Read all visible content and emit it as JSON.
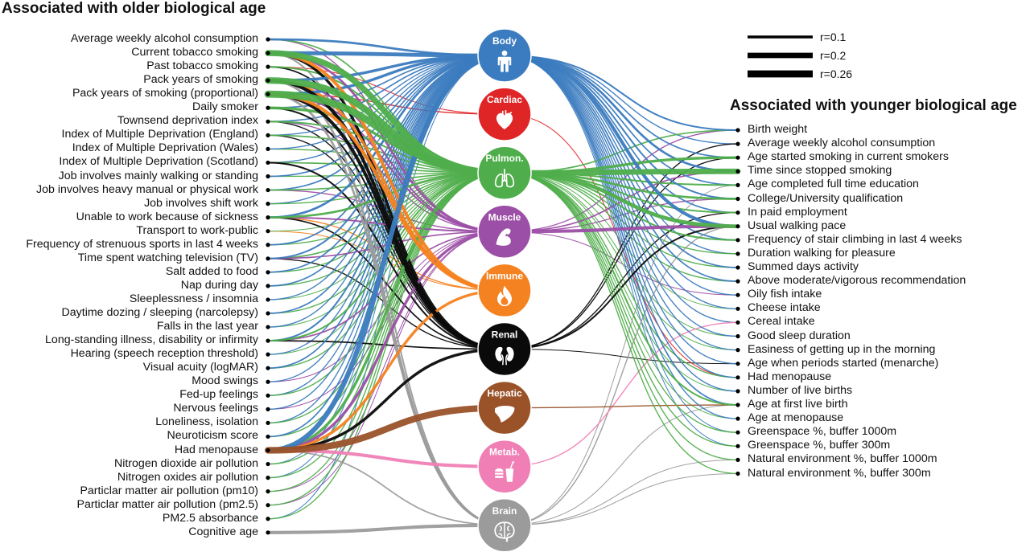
{
  "headers": {
    "older": "Associated with older biological age",
    "younger": "Associated with younger biological age"
  },
  "legend": [
    {
      "label": "r=0.1",
      "r": 0.1
    },
    {
      "label": "r=0.2",
      "r": 0.2
    },
    {
      "label": "r=0.26",
      "r": 0.26
    }
  ],
  "organs": [
    {
      "id": "body",
      "label": "Body",
      "color": "#3b7bbf",
      "icon": "body-icon"
    },
    {
      "id": "cardiac",
      "label": "Cardiac",
      "color": "#e02527",
      "icon": "heart-icon"
    },
    {
      "id": "pulmon",
      "label": "Pulmon.",
      "color": "#4fae4b",
      "icon": "lungs-icon"
    },
    {
      "id": "muscle",
      "label": "Muscle",
      "color": "#9c4fa6",
      "icon": "muscle-arm-icon"
    },
    {
      "id": "immune",
      "label": "Immune",
      "color": "#f58220",
      "icon": "flame-icon"
    },
    {
      "id": "renal",
      "label": "Renal",
      "color": "#0a0a0a",
      "icon": "kidneys-icon"
    },
    {
      "id": "hepatic",
      "label": "Hepatic",
      "color": "#9a5229",
      "icon": "liver-icon"
    },
    {
      "id": "metab",
      "label": "Metab.",
      "color": "#ef7fb5",
      "icon": "fast-food-icon"
    },
    {
      "id": "brain",
      "label": "Brain",
      "color": "#9b9b9b",
      "icon": "brain-icon"
    }
  ],
  "older_factors": [
    "Average weekly alcohol consumption",
    "Current tobacco smoking",
    "Past tobacco smoking",
    "Pack years of smoking",
    "Pack years of smoking (proportional)",
    "Daily smoker",
    "Townsend deprivation index",
    "Index of Multiple Deprivation (England)",
    "Index of Multiple Deprivation (Wales)",
    "Index of Multiple Deprivation (Scotland)",
    "Job involves mainly walking or standing",
    "Job involves heavy manual or physical work",
    "Job involves shift work",
    "Unable to work because of sickness",
    "Transport to work-public",
    "Frequency of strenuous sports in last 4 weeks",
    "Time spent watching television (TV)",
    "Salt added to food",
    "Nap during day",
    "Sleeplessness / insomnia",
    "Daytime dozing / sleeping (narcolepsy)",
    "Falls in the last year",
    "Long-standing illness, disability or infirmity",
    "Hearing (speech reception threshold)",
    "Visual acuity (logMAR)",
    "Mood swings",
    "Fed-up feelings",
    "Nervous feelings",
    "Loneliness, isolation",
    "Neuroticism score",
    "Had menopause",
    "Nitrogen dioxide air pollution",
    "Nitrogen oxides air pollution",
    "Particlar matter air pollution (pm10)",
    "Particlar matter air pollution (pm2.5)",
    "PM2.5 absorbance",
    "Cognitive age"
  ],
  "younger_factors": [
    "Birth weight",
    "Average weekly alcohol consumption",
    "Age started smoking in current smokers",
    "Time since stopped smoking",
    "Age completed full time education",
    "College/University qualification",
    "In paid employment",
    "Usual walking pace",
    "Frequency of stair climbing in last 4 weeks",
    "Duration walking for pleasure",
    "Summed days activity",
    "Above moderate/vigorous recommendation",
    "Oily fish intake",
    "Cheese intake",
    "Cereal intake",
    "Good sleep duration",
    "Easiness of getting up in the morning",
    "Age when periods started (menarche)",
    "Had menopause",
    "Number of live births",
    "Age at first live birth",
    "Age at menopause",
    "Greenspace %, buffer 1000m",
    "Greenspace %, buffer 300m",
    "Natural environment %, buffer 1000m",
    "Natural environment %, buffer 300m"
  ],
  "older_links": [
    {
      "factor": 0,
      "organ": "body",
      "r": 0.08
    },
    {
      "factor": 0,
      "organ": "pulmon",
      "r": 0.05
    },
    {
      "factor": 0,
      "organ": "muscle",
      "r": 0.04
    },
    {
      "factor": 1,
      "organ": "body",
      "r": 0.14
    },
    {
      "factor": 1,
      "organ": "pulmon",
      "r": 0.22
    },
    {
      "factor": 1,
      "organ": "immune",
      "r": 0.12
    },
    {
      "factor": 1,
      "organ": "renal",
      "r": 0.1
    },
    {
      "factor": 1,
      "organ": "muscle",
      "r": 0.08
    },
    {
      "factor": 1,
      "organ": "brain",
      "r": 0.06
    },
    {
      "factor": 2,
      "organ": "pulmon",
      "r": 0.06
    },
    {
      "factor": 2,
      "organ": "renal",
      "r": 0.05
    },
    {
      "factor": 2,
      "organ": "cardiac",
      "r": 0.03
    },
    {
      "factor": 3,
      "organ": "body",
      "r": 0.1
    },
    {
      "factor": 3,
      "organ": "pulmon",
      "r": 0.24
    },
    {
      "factor": 3,
      "organ": "renal",
      "r": 0.12
    },
    {
      "factor": 3,
      "organ": "immune",
      "r": 0.1
    },
    {
      "factor": 3,
      "organ": "brain",
      "r": 0.08
    },
    {
      "factor": 3,
      "organ": "muscle",
      "r": 0.06
    },
    {
      "factor": 4,
      "organ": "body",
      "r": 0.1
    },
    {
      "factor": 4,
      "organ": "pulmon",
      "r": 0.26
    },
    {
      "factor": 4,
      "organ": "renal",
      "r": 0.12
    },
    {
      "factor": 4,
      "organ": "immune",
      "r": 0.12
    },
    {
      "factor": 4,
      "organ": "brain",
      "r": 0.08
    },
    {
      "factor": 4,
      "organ": "muscle",
      "r": 0.06
    },
    {
      "factor": 4,
      "organ": "cardiac",
      "r": 0.04
    },
    {
      "factor": 5,
      "organ": "pulmon",
      "r": 0.1
    },
    {
      "factor": 5,
      "organ": "renal",
      "r": 0.06
    },
    {
      "factor": 5,
      "organ": "body",
      "r": 0.05
    },
    {
      "factor": 6,
      "organ": "pulmon",
      "r": 0.06
    },
    {
      "factor": 6,
      "organ": "body",
      "r": 0.05
    },
    {
      "factor": 6,
      "organ": "renal",
      "r": 0.04
    },
    {
      "factor": 6,
      "organ": "muscle",
      "r": 0.04
    },
    {
      "factor": 7,
      "organ": "pulmon",
      "r": 0.05
    },
    {
      "factor": 7,
      "organ": "body",
      "r": 0.04
    },
    {
      "factor": 7,
      "organ": "renal",
      "r": 0.04
    },
    {
      "factor": 8,
      "organ": "pulmon",
      "r": 0.04
    },
    {
      "factor": 8,
      "organ": "body",
      "r": 0.04
    },
    {
      "factor": 9,
      "organ": "pulmon",
      "r": 0.05
    },
    {
      "factor": 9,
      "organ": "renal",
      "r": 0.06
    },
    {
      "factor": 9,
      "organ": "body",
      "r": 0.04
    },
    {
      "factor": 10,
      "organ": "body",
      "r": 0.05
    },
    {
      "factor": 10,
      "organ": "pulmon",
      "r": 0.04
    },
    {
      "factor": 11,
      "organ": "body",
      "r": 0.05
    },
    {
      "factor": 11,
      "organ": "pulmon",
      "r": 0.05
    },
    {
      "factor": 11,
      "organ": "muscle",
      "r": 0.04
    },
    {
      "factor": 12,
      "organ": "body",
      "r": 0.04
    },
    {
      "factor": 12,
      "organ": "pulmon",
      "r": 0.04
    },
    {
      "factor": 13,
      "organ": "body",
      "r": 0.08
    },
    {
      "factor": 13,
      "organ": "pulmon",
      "r": 0.08
    },
    {
      "factor": 13,
      "organ": "muscle",
      "r": 0.06
    },
    {
      "factor": 13,
      "organ": "renal",
      "r": 0.05
    },
    {
      "factor": 13,
      "organ": "immune",
      "r": 0.04
    },
    {
      "factor": 14,
      "organ": "immune",
      "r": 0.03
    },
    {
      "factor": 14,
      "organ": "pulmon",
      "r": 0.03
    },
    {
      "factor": 15,
      "organ": "body",
      "r": 0.05
    },
    {
      "factor": 15,
      "organ": "pulmon",
      "r": 0.04
    },
    {
      "factor": 16,
      "organ": "body",
      "r": 0.06
    },
    {
      "factor": 16,
      "organ": "pulmon",
      "r": 0.05
    },
    {
      "factor": 16,
      "organ": "muscle",
      "r": 0.05
    },
    {
      "factor": 16,
      "organ": "renal",
      "r": 0.04
    },
    {
      "factor": 17,
      "organ": "body",
      "r": 0.05
    },
    {
      "factor": 17,
      "organ": "pulmon",
      "r": 0.04
    },
    {
      "factor": 18,
      "organ": "body",
      "r": 0.05
    },
    {
      "factor": 18,
      "organ": "pulmon",
      "r": 0.04
    },
    {
      "factor": 19,
      "organ": "body",
      "r": 0.04
    },
    {
      "factor": 19,
      "organ": "pulmon",
      "r": 0.03
    },
    {
      "factor": 20,
      "organ": "body",
      "r": 0.05
    },
    {
      "factor": 20,
      "organ": "pulmon",
      "r": 0.04
    },
    {
      "factor": 21,
      "organ": "pulmon",
      "r": 0.03
    },
    {
      "factor": 21,
      "organ": "body",
      "r": 0.04
    },
    {
      "factor": 22,
      "organ": "body",
      "r": 0.06
    },
    {
      "factor": 22,
      "organ": "pulmon",
      "r": 0.06
    },
    {
      "factor": 22,
      "organ": "muscle",
      "r": 0.05
    },
    {
      "factor": 22,
      "organ": "renal",
      "r": 0.05
    },
    {
      "factor": 23,
      "organ": "body",
      "r": 0.04
    },
    {
      "factor": 23,
      "organ": "pulmon",
      "r": 0.03
    },
    {
      "factor": 24,
      "organ": "body",
      "r": 0.05
    },
    {
      "factor": 24,
      "organ": "pulmon",
      "r": 0.04
    },
    {
      "factor": 25,
      "organ": "body",
      "r": 0.04
    },
    {
      "factor": 25,
      "organ": "muscle",
      "r": 0.03
    },
    {
      "factor": 26,
      "organ": "body",
      "r": 0.04
    },
    {
      "factor": 26,
      "organ": "pulmon",
      "r": 0.04
    },
    {
      "factor": 27,
      "organ": "body",
      "r": 0.04
    },
    {
      "factor": 27,
      "organ": "muscle",
      "r": 0.03
    },
    {
      "factor": 28,
      "organ": "body",
      "r": 0.04
    },
    {
      "factor": 28,
      "organ": "pulmon",
      "r": 0.04
    },
    {
      "factor": 29,
      "organ": "body",
      "r": 0.05
    },
    {
      "factor": 29,
      "organ": "pulmon",
      "r": 0.04
    },
    {
      "factor": 30,
      "organ": "body",
      "r": 0.18
    },
    {
      "factor": 30,
      "organ": "pulmon",
      "r": 0.1
    },
    {
      "factor": 30,
      "organ": "muscle",
      "r": 0.1
    },
    {
      "factor": 30,
      "organ": "immune",
      "r": 0.1
    },
    {
      "factor": 30,
      "organ": "renal",
      "r": 0.1
    },
    {
      "factor": 30,
      "organ": "hepatic",
      "r": 0.24
    },
    {
      "factor": 30,
      "organ": "metab",
      "r": 0.12
    },
    {
      "factor": 30,
      "organ": "brain",
      "r": 0.05
    },
    {
      "factor": 31,
      "organ": "pulmon",
      "r": 0.04
    },
    {
      "factor": 31,
      "organ": "body",
      "r": 0.03
    },
    {
      "factor": 32,
      "organ": "pulmon",
      "r": 0.04
    },
    {
      "factor": 32,
      "organ": "body",
      "r": 0.03
    },
    {
      "factor": 33,
      "organ": "pulmon",
      "r": 0.04
    },
    {
      "factor": 33,
      "organ": "muscle",
      "r": 0.03
    },
    {
      "factor": 34,
      "organ": "pulmon",
      "r": 0.04
    },
    {
      "factor": 34,
      "organ": "muscle",
      "r": 0.03
    },
    {
      "factor": 35,
      "organ": "pulmon",
      "r": 0.04
    },
    {
      "factor": 35,
      "organ": "body",
      "r": 0.03
    },
    {
      "factor": 36,
      "organ": "brain",
      "r": 0.12
    }
  ],
  "younger_links": [
    {
      "factor": 0,
      "organ": "body",
      "r": 0.06
    },
    {
      "factor": 0,
      "organ": "pulmon",
      "r": 0.05
    },
    {
      "factor": 0,
      "organ": "muscle",
      "r": 0.04
    },
    {
      "factor": 1,
      "organ": "body",
      "r": 0.04
    },
    {
      "factor": 1,
      "organ": "renal",
      "r": 0.04
    },
    {
      "factor": 2,
      "organ": "pulmon",
      "r": 0.1
    },
    {
      "factor": 2,
      "organ": "body",
      "r": 0.05
    },
    {
      "factor": 2,
      "organ": "renal",
      "r": 0.04
    },
    {
      "factor": 3,
      "organ": "pulmon",
      "r": 0.2
    },
    {
      "factor": 3,
      "organ": "body",
      "r": 0.08
    },
    {
      "factor": 3,
      "organ": "muscle",
      "r": 0.05
    },
    {
      "factor": 4,
      "organ": "pulmon",
      "r": 0.06
    },
    {
      "factor": 4,
      "organ": "body",
      "r": 0.05
    },
    {
      "factor": 4,
      "organ": "brain",
      "r": 0.03
    },
    {
      "factor": 5,
      "organ": "pulmon",
      "r": 0.08
    },
    {
      "factor": 5,
      "organ": "body",
      "r": 0.06
    },
    {
      "factor": 5,
      "organ": "muscle",
      "r": 0.04
    },
    {
      "factor": 6,
      "organ": "pulmon",
      "r": 0.06
    },
    {
      "factor": 6,
      "organ": "body",
      "r": 0.05
    },
    {
      "factor": 6,
      "organ": "renal",
      "r": 0.04
    },
    {
      "factor": 7,
      "organ": "pulmon",
      "r": 0.14
    },
    {
      "factor": 7,
      "organ": "body",
      "r": 0.12
    },
    {
      "factor": 7,
      "organ": "muscle",
      "r": 0.12
    },
    {
      "factor": 7,
      "organ": "renal",
      "r": 0.06
    },
    {
      "factor": 7,
      "organ": "brain",
      "r": 0.04
    },
    {
      "factor": 8,
      "organ": "pulmon",
      "r": 0.06
    },
    {
      "factor": 8,
      "organ": "body",
      "r": 0.05
    },
    {
      "factor": 9,
      "organ": "body",
      "r": 0.04
    },
    {
      "factor": 9,
      "organ": "pulmon",
      "r": 0.04
    },
    {
      "factor": 10,
      "organ": "body",
      "r": 0.05
    },
    {
      "factor": 10,
      "organ": "pulmon",
      "r": 0.04
    },
    {
      "factor": 11,
      "organ": "body",
      "r": 0.05
    },
    {
      "factor": 11,
      "organ": "pulmon",
      "r": 0.04
    },
    {
      "factor": 12,
      "organ": "body",
      "r": 0.04
    },
    {
      "factor": 12,
      "organ": "muscle",
      "r": 0.03
    },
    {
      "factor": 13,
      "organ": "body",
      "r": 0.04
    },
    {
      "factor": 13,
      "organ": "pulmon",
      "r": 0.03
    },
    {
      "factor": 14,
      "organ": "body",
      "r": 0.04
    },
    {
      "factor": 14,
      "organ": "metab",
      "r": 0.04
    },
    {
      "factor": 15,
      "organ": "body",
      "r": 0.04
    },
    {
      "factor": 15,
      "organ": "pulmon",
      "r": 0.03
    },
    {
      "factor": 16,
      "organ": "body",
      "r": 0.04
    },
    {
      "factor": 16,
      "organ": "pulmon",
      "r": 0.03
    },
    {
      "factor": 17,
      "organ": "body",
      "r": 0.04
    },
    {
      "factor": 17,
      "organ": "renal",
      "r": 0.03
    },
    {
      "factor": 18,
      "organ": "pulmon",
      "r": 0.04
    },
    {
      "factor": 18,
      "organ": "body",
      "r": 0.04
    },
    {
      "factor": 18,
      "organ": "cardiac",
      "r": 0.03
    },
    {
      "factor": 19,
      "organ": "body",
      "r": 0.04
    },
    {
      "factor": 19,
      "organ": "pulmon",
      "r": 0.03
    },
    {
      "factor": 20,
      "organ": "pulmon",
      "r": 0.06
    },
    {
      "factor": 20,
      "organ": "body",
      "r": 0.05
    },
    {
      "factor": 20,
      "organ": "hepatic",
      "r": 0.04
    },
    {
      "factor": 20,
      "organ": "brain",
      "r": 0.03
    },
    {
      "factor": 21,
      "organ": "body",
      "r": 0.04
    },
    {
      "factor": 21,
      "organ": "pulmon",
      "r": 0.03
    },
    {
      "factor": 22,
      "organ": "pulmon",
      "r": 0.04
    },
    {
      "factor": 22,
      "organ": "body",
      "r": 0.03
    },
    {
      "factor": 23,
      "organ": "pulmon",
      "r": 0.04
    },
    {
      "factor": 23,
      "organ": "body",
      "r": 0.03
    },
    {
      "factor": 24,
      "organ": "pulmon",
      "r": 0.04
    },
    {
      "factor": 24,
      "organ": "brain",
      "r": 0.03
    },
    {
      "factor": 25,
      "organ": "pulmon",
      "r": 0.04
    },
    {
      "factor": 25,
      "organ": "brain",
      "r": 0.03
    }
  ]
}
